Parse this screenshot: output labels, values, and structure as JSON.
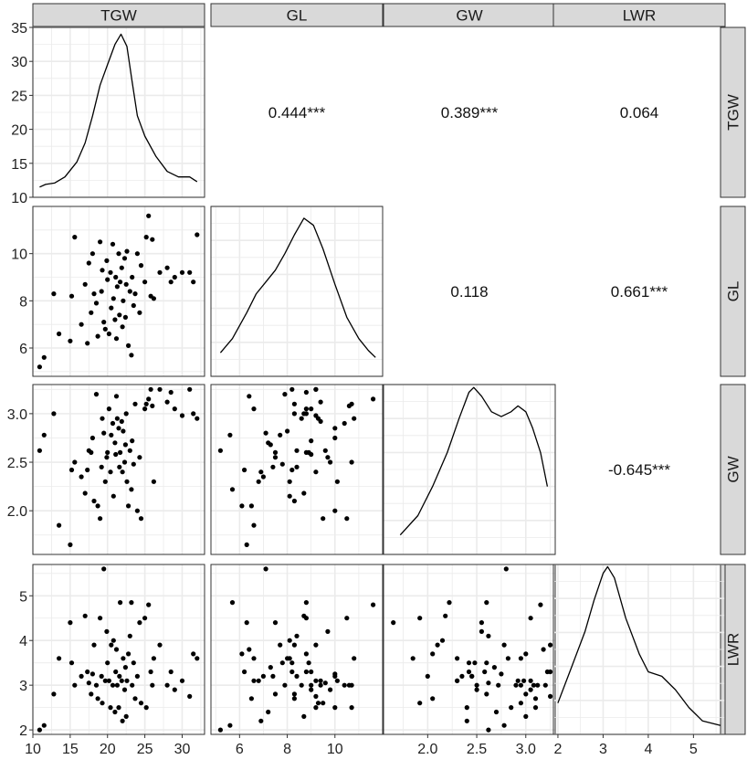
{
  "chart_data": {
    "type": "scatter",
    "variables": [
      "TGW",
      "GL",
      "GW",
      "LWR"
    ],
    "colors": {
      "strip_fill": "#d9d9d9",
      "strip_border": "#333333",
      "grid": "#ebebeb",
      "points": "#000000",
      "line": "#000000"
    },
    "axes": {
      "TGW": {
        "range": [
          10,
          33
        ],
        "ticks": [
          10,
          15,
          20,
          25,
          30
        ],
        "diag_ticks": [
          10,
          15,
          20,
          25,
          30,
          35
        ]
      },
      "GL": {
        "range": [
          4.8,
          12
        ],
        "ticks": [
          6,
          8,
          10
        ]
      },
      "GW": {
        "range": [
          1.55,
          3.3
        ],
        "ticks": [
          2.0,
          2.5,
          3.0
        ]
      },
      "LWR": {
        "range": [
          1.9,
          5.7
        ],
        "ticks": [
          2,
          3,
          4,
          5
        ]
      }
    },
    "diag_range": [
      10,
      35
    ],
    "correlations": [
      {
        "row": 0,
        "col": 1,
        "label": "0.444***"
      },
      {
        "row": 0,
        "col": 2,
        "label": "0.389***"
      },
      {
        "row": 0,
        "col": 3,
        "label": "0.064"
      },
      {
        "row": 1,
        "col": 2,
        "label": "0.118"
      },
      {
        "row": 1,
        "col": 3,
        "label": "0.661***"
      },
      {
        "row": 2,
        "col": 3,
        "label": "-0.645***"
      }
    ],
    "densities": {
      "TGW": [
        [
          10.9,
          11.5
        ],
        [
          11.7,
          11.9
        ],
        [
          12.9,
          12.1
        ],
        [
          14.3,
          13.0
        ],
        [
          15.9,
          15.2
        ],
        [
          17.0,
          18.0
        ],
        [
          18.0,
          22.0
        ],
        [
          19.0,
          26.5
        ],
        [
          20.0,
          29.5
        ],
        [
          21.0,
          32.5
        ],
        [
          21.8,
          34.0
        ],
        [
          22.6,
          32.2
        ],
        [
          23.3,
          27.0
        ],
        [
          24.0,
          22.0
        ],
        [
          25.0,
          19.0
        ],
        [
          26.5,
          16.0
        ],
        [
          28.0,
          13.8
        ],
        [
          29.5,
          13.0
        ],
        [
          31.0,
          13.0
        ],
        [
          32.0,
          12.3
        ]
      ],
      "GL": [
        [
          5.2,
          5.8
        ],
        [
          5.7,
          6.4
        ],
        [
          6.3,
          7.5
        ],
        [
          6.7,
          8.3
        ],
        [
          7.1,
          8.8
        ],
        [
          7.5,
          9.3
        ],
        [
          7.9,
          10.0
        ],
        [
          8.3,
          10.8
        ],
        [
          8.7,
          11.5
        ],
        [
          9.1,
          11.2
        ],
        [
          9.5,
          10.2
        ],
        [
          10.0,
          8.7
        ],
        [
          10.5,
          7.3
        ],
        [
          11.0,
          6.4
        ],
        [
          11.4,
          5.9
        ],
        [
          11.7,
          5.6
        ]
      ],
      "GW": [
        [
          1.72,
          1.75
        ],
        [
          1.9,
          1.95
        ],
        [
          2.05,
          2.25
        ],
        [
          2.2,
          2.6
        ],
        [
          2.32,
          2.95
        ],
        [
          2.42,
          3.22
        ],
        [
          2.47,
          3.27
        ],
        [
          2.55,
          3.18
        ],
        [
          2.65,
          3.02
        ],
        [
          2.75,
          2.97
        ],
        [
          2.85,
          3.02
        ],
        [
          2.92,
          3.08
        ],
        [
          3.0,
          3.02
        ],
        [
          3.07,
          2.85
        ],
        [
          3.15,
          2.6
        ],
        [
          3.22,
          2.25
        ]
      ],
      "LWR": [
        [
          2.0,
          2.6
        ],
        [
          2.3,
          3.4
        ],
        [
          2.6,
          4.2
        ],
        [
          2.8,
          4.9
        ],
        [
          3.0,
          5.5
        ],
        [
          3.1,
          5.65
        ],
        [
          3.25,
          5.4
        ],
        [
          3.5,
          4.5
        ],
        [
          3.8,
          3.7
        ],
        [
          4.0,
          3.3
        ],
        [
          4.3,
          3.2
        ],
        [
          4.6,
          2.9
        ],
        [
          4.9,
          2.5
        ],
        [
          5.2,
          2.2
        ],
        [
          5.4,
          2.15
        ],
        [
          5.6,
          2.1
        ]
      ]
    },
    "observations": [
      [
        10.9,
        5.2,
        2.62,
        2.0
      ],
      [
        11.5,
        5.6,
        2.78,
        2.1
      ],
      [
        12.8,
        8.3,
        3.0,
        2.8
      ],
      [
        13.5,
        6.6,
        1.85,
        3.6
      ],
      [
        15.0,
        6.3,
        1.65,
        4.4
      ],
      [
        15.2,
        8.2,
        2.42,
        3.5
      ],
      [
        15.6,
        10.7,
        2.5,
        3.0
      ],
      [
        16.5,
        7.0,
        2.35,
        3.2
      ],
      [
        17.0,
        8.7,
        2.18,
        4.55
      ],
      [
        17.3,
        6.2,
        2.42,
        3.3
      ],
      [
        17.5,
        9.6,
        2.62,
        3.05
      ],
      [
        17.8,
        7.5,
        2.6,
        2.8
      ],
      [
        18.0,
        10.0,
        2.75,
        3.25
      ],
      [
        18.2,
        8.3,
        2.1,
        3.9
      ],
      [
        18.5,
        7.9,
        3.2,
        3.0
      ],
      [
        18.7,
        6.5,
        2.05,
        2.7
      ],
      [
        19.0,
        10.5,
        1.92,
        4.5
      ],
      [
        19.2,
        8.4,
        2.45,
        3.2
      ],
      [
        19.3,
        9.3,
        2.95,
        2.6
      ],
      [
        19.5,
        7.1,
        2.8,
        5.6
      ],
      [
        19.7,
        6.8,
        2.3,
        3.1
      ],
      [
        19.9,
        9.7,
        2.55,
        4.2
      ],
      [
        20.0,
        8.9,
        2.6,
        3.5
      ],
      [
        20.2,
        6.6,
        3.05,
        3.1
      ],
      [
        20.4,
        9.2,
        2.4,
        2.5
      ],
      [
        20.5,
        7.7,
        2.78,
        3.9
      ],
      [
        20.7,
        10.4,
        2.9,
        3.0
      ],
      [
        20.8,
        8.1,
        2.15,
        4.0
      ],
      [
        21.0,
        7.2,
        2.7,
        2.4
      ],
      [
        21.1,
        9.0,
        2.58,
        3.3
      ],
      [
        21.2,
        6.4,
        3.18,
        3.8
      ],
      [
        21.3,
        8.6,
        2.95,
        3.0
      ],
      [
        21.5,
        10.0,
        2.85,
        2.5
      ],
      [
        21.6,
        7.4,
        2.45,
        3.2
      ],
      [
        21.7,
        8.8,
        2.6,
        4.85
      ],
      [
        21.9,
        9.4,
        2.92,
        3.1
      ],
      [
        22.0,
        6.9,
        2.4,
        2.2
      ],
      [
        22.1,
        8.0,
        2.82,
        3.6
      ],
      [
        22.3,
        9.8,
        2.5,
        2.9
      ],
      [
        22.4,
        7.3,
        2.68,
        3.4
      ],
      [
        22.5,
        8.7,
        3.0,
        2.3
      ],
      [
        22.6,
        10.1,
        2.3,
        3.1
      ],
      [
        22.8,
        6.1,
        2.05,
        3.7
      ],
      [
        23.0,
        8.4,
        2.62,
        4.1
      ],
      [
        23.2,
        5.7,
        2.22,
        4.85
      ],
      [
        23.3,
        9.0,
        2.72,
        3.0
      ],
      [
        23.5,
        7.8,
        2.48,
        3.5
      ],
      [
        23.7,
        8.3,
        3.1,
        2.7
      ],
      [
        24.0,
        10.0,
        2.0,
        3.2
      ],
      [
        24.3,
        7.5,
        2.55,
        4.4
      ],
      [
        24.5,
        9.5,
        1.92,
        2.6
      ],
      [
        25.0,
        8.8,
        3.05,
        4.5
      ],
      [
        25.2,
        10.7,
        3.1,
        2.5
      ],
      [
        25.5,
        11.6,
        3.15,
        4.8
      ],
      [
        25.8,
        8.2,
        3.25,
        3.3
      ],
      [
        26.0,
        10.6,
        3.08,
        3.0
      ],
      [
        26.2,
        8.1,
        2.3,
        3.6
      ],
      [
        27.0,
        9.2,
        3.25,
        3.9
      ],
      [
        28.0,
        9.4,
        3.12,
        3.0
      ],
      [
        28.5,
        8.8,
        3.22,
        3.3
      ],
      [
        29.0,
        9.0,
        3.05,
        2.9
      ],
      [
        30.0,
        9.2,
        2.98,
        3.1
      ],
      [
        31.0,
        9.2,
        3.25,
        2.75
      ],
      [
        31.5,
        8.8,
        3.0,
        3.7
      ],
      [
        32.0,
        10.8,
        2.95,
        3.6
      ]
    ]
  }
}
